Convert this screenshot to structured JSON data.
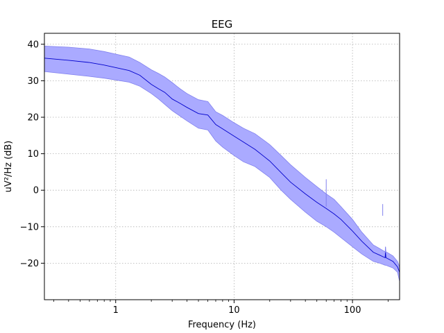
{
  "chart_data": {
    "type": "area",
    "title": "EEG",
    "xlabel": "Frequency (Hz)",
    "ylabel": "uV²/Hz (dB)",
    "xscale": "log",
    "xlim": [
      0.25,
      250
    ],
    "ylim": [
      -30,
      43
    ],
    "grid": true,
    "xticks": [
      {
        "value": 1,
        "label": "1"
      },
      {
        "value": 10,
        "label": "10"
      },
      {
        "value": 100,
        "label": "100"
      }
    ],
    "yticks": [
      {
        "value": -20,
        "label": "−20"
      },
      {
        "value": -10,
        "label": "−10"
      },
      {
        "value": 0,
        "label": "0"
      },
      {
        "value": 10,
        "label": "10"
      },
      {
        "value": 20,
        "label": "20"
      },
      {
        "value": 30,
        "label": "30"
      },
      {
        "value": 40,
        "label": "40"
      }
    ],
    "colors": {
      "line": "#0000cc",
      "band": "#aaaaff",
      "band_edge": "#8080ee",
      "grid": "#b0b0b0"
    },
    "series": [
      {
        "style": "mean line with shaded band",
        "x": [
          0.25,
          0.4,
          0.6,
          0.8,
          1.0,
          1.3,
          1.6,
          2.0,
          2.3,
          2.6,
          3.0,
          3.5,
          4.0,
          5.0,
          6.0,
          7.0,
          8.0,
          10,
          12,
          15,
          20,
          25,
          30,
          40,
          50,
          60,
          70,
          80,
          100,
          120,
          150,
          170,
          180,
          200,
          220,
          240,
          250
        ],
        "mean": [
          36.2,
          35.6,
          35.0,
          34.3,
          33.6,
          32.8,
          31.5,
          29.0,
          27.8,
          26.8,
          25.0,
          23.8,
          22.7,
          21.0,
          20.6,
          18.0,
          16.8,
          14.8,
          13.2,
          11.2,
          8.0,
          4.8,
          2.2,
          -1.0,
          -3.3,
          -5.0,
          -6.5,
          -8.0,
          -11.2,
          -14.0,
          -17.0,
          -17.8,
          -18.2,
          -18.8,
          -19.5,
          -21.0,
          -22.5
        ],
        "lower": [
          32.5,
          31.8,
          31.2,
          30.7,
          30.2,
          29.6,
          28.5,
          26.5,
          25.0,
          23.5,
          21.8,
          20.3,
          19.0,
          17.0,
          16.5,
          13.5,
          11.8,
          9.5,
          7.8,
          6.5,
          3.5,
          0.0,
          -2.5,
          -6.0,
          -8.5,
          -10.0,
          -11.5,
          -13.0,
          -15.5,
          -17.5,
          -19.5,
          -20.0,
          -20.3,
          -20.8,
          -21.3,
          -22.5,
          -25.0
        ],
        "upper": [
          39.5,
          39.2,
          38.7,
          38.0,
          37.3,
          36.5,
          35.0,
          33.0,
          32.0,
          31.0,
          29.5,
          27.8,
          26.5,
          24.8,
          24.3,
          21.5,
          20.5,
          18.5,
          17.0,
          15.5,
          12.5,
          9.5,
          7.0,
          3.5,
          1.0,
          -1.0,
          -2.5,
          -4.5,
          -8.0,
          -11.5,
          -15.0,
          -16.0,
          -16.5,
          -17.2,
          -18.0,
          -19.5,
          -21.0
        ],
        "spikes": [
          {
            "x": 60,
            "mean_peak": -4.5,
            "band_peak": 3.0
          },
          {
            "x": 180,
            "mean_peak": -7.0,
            "band_peak": -3.8
          },
          {
            "x": 190,
            "mean_peak": -17.0,
            "band_peak": -15.5
          }
        ]
      }
    ]
  }
}
